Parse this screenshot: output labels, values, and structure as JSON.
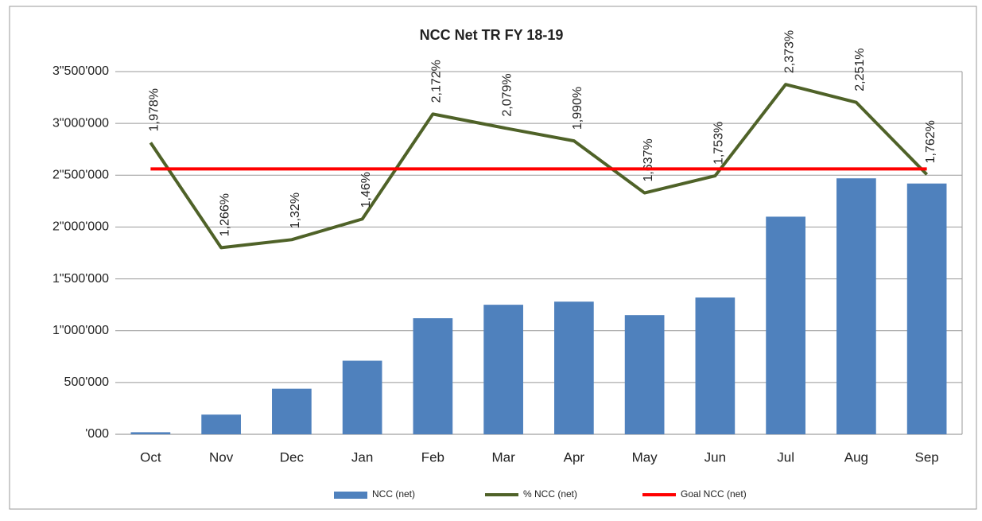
{
  "chart_data": {
    "type": "bar",
    "title": "NCC Net TR FY 18-19",
    "categories": [
      "Oct",
      "Nov",
      "Dec",
      "Jan",
      "Feb",
      "Mar",
      "Apr",
      "May",
      "Jun",
      "Jul",
      "Aug",
      "Sep"
    ],
    "series": [
      {
        "name": "NCC (net)",
        "type": "bar",
        "color": "#4f81bd",
        "values": [
          20000,
          190000,
          440000,
          710000,
          1120000,
          1250000,
          1280000,
          1150000,
          1320000,
          2100000,
          2470000,
          2420000
        ]
      },
      {
        "name": "% NCC (net)",
        "type": "line",
        "axis": "y2",
        "color": "#4f6228",
        "values": [
          1.978,
          1.266,
          1.32,
          1.46,
          2.172,
          2.079,
          1.99,
          1.637,
          1.753,
          2.373,
          2.251,
          1.762
        ],
        "value_labels": [
          "1,978%",
          "1,266%",
          "1,32%",
          "1,46%",
          "2,172%",
          "2,079%",
          "1,990%",
          "1,637%",
          "1,753%",
          "2,373%",
          "2,251%",
          "1,762%"
        ]
      },
      {
        "name": "Goal NCC (net)",
        "type": "line",
        "axis": "y2",
        "color": "#ff0000",
        "values": [
          1.8,
          1.8,
          1.8,
          1.8,
          1.8,
          1.8,
          1.8,
          1.8,
          1.8,
          1.8,
          1.8,
          1.8
        ]
      }
    ],
    "ylim": [
      0,
      3500000
    ],
    "yticks": [
      {
        "value": 0,
        "label": "'000"
      },
      {
        "value": 500000,
        "label": "500'000"
      },
      {
        "value": 1000000,
        "label": "1\"000'000"
      },
      {
        "value": 1500000,
        "label": "1\"500'000"
      },
      {
        "value": 2000000,
        "label": "2\"000'000"
      },
      {
        "value": 2500000,
        "label": "2\"500'000"
      },
      {
        "value": 3000000,
        "label": "3\"000'000"
      },
      {
        "value": 3500000,
        "label": "3\"500'000"
      }
    ],
    "y2lim": [
      0,
      2.46
    ],
    "grid": true,
    "legend": "bottom"
  }
}
